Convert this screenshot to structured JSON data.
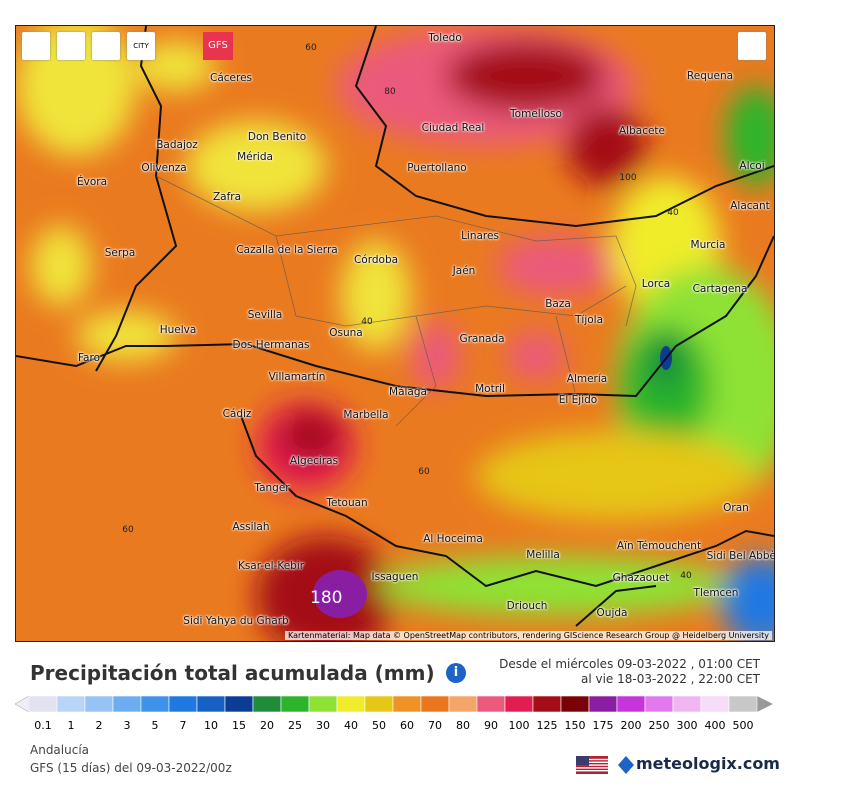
{
  "toolbar": {
    "city_button": "CITY",
    "model": "GFS"
  },
  "map": {
    "places": [
      "Toledo",
      "Cáceres",
      "Requena",
      "Don Benito",
      "Mérida",
      "Ciudad Real",
      "Tomelloso",
      "Albacete",
      "Badajoz",
      "Olivenza",
      "Évora",
      "Puertollano",
      "Zafra",
      "Alcoi",
      "Alacant",
      "Murcia",
      "Linares",
      "Cazalla de la Sierra",
      "Córdoba",
      "Serpa",
      "Jaén",
      "Lorca",
      "Cartagena",
      "Baza",
      "Sevilla",
      "Huelva",
      "Osuna",
      "Tíjola",
      "Granada",
      "Faro",
      "Dos Hermanas",
      "Villamartín",
      "Málaga",
      "Motril",
      "Almería",
      "El Ejido",
      "Cádiz",
      "Marbella",
      "Algeciras",
      "Tanger",
      "Tetouan",
      "Assilah",
      "Oran",
      "Al Hoceima",
      "Melilla",
      "Aïn Témouchent",
      "Sidi Bel Abbès",
      "Ksar-el-Kebir",
      "Issaguen",
      "Ghazaouet",
      "Tlemcen",
      "Driouch",
      "Oujda",
      "Sidi Yahya du Gharb"
    ],
    "contours": [
      60,
      80,
      100,
      40,
      40,
      60,
      60,
      40
    ],
    "peak": 180,
    "attribution": "Kartenmaterial: Map data © OpenStreetMap contributors, rendering GIScience Research Group @ Heidelberg University"
  },
  "legend": {
    "title": "Precipitación total acumulada (mm)",
    "period_from": "Desde el miércoles 09-03-2022 , 01:00 CET",
    "period_to": "al vie 18-03-2022 , 22:00 CET",
    "scale": [
      {
        "value": 0.1,
        "color": "#e2e2f2"
      },
      {
        "value": 1,
        "color": "#b8d4f6"
      },
      {
        "value": 2,
        "color": "#96c2f4"
      },
      {
        "value": 3,
        "color": "#6cadf2"
      },
      {
        "value": 5,
        "color": "#3f92ea"
      },
      {
        "value": 7,
        "color": "#2078e2"
      },
      {
        "value": 10,
        "color": "#1660c6"
      },
      {
        "value": 15,
        "color": "#0c3c94"
      },
      {
        "value": 20,
        "color": "#1e8c3a"
      },
      {
        "value": 25,
        "color": "#2cb52c"
      },
      {
        "value": 30,
        "color": "#8ee234"
      },
      {
        "value": 40,
        "color": "#f0ec2c"
      },
      {
        "value": 50,
        "color": "#e6c616"
      },
      {
        "value": 60,
        "color": "#ef9228"
      },
      {
        "value": 70,
        "color": "#ea761e"
      },
      {
        "value": 80,
        "color": "#f5a46a"
      },
      {
        "value": 90,
        "color": "#eb5a7c"
      },
      {
        "value": 100,
        "color": "#e21e50"
      },
      {
        "value": 125,
        "color": "#a40c18"
      },
      {
        "value": 150,
        "color": "#7a0206"
      },
      {
        "value": 175,
        "color": "#8a1ea2"
      },
      {
        "value": 200,
        "color": "#c634dc"
      },
      {
        "value": 250,
        "color": "#e27aee"
      },
      {
        "value": 300,
        "color": "#f0b6f0"
      },
      {
        "value": 400,
        "color": "#f6dcf6"
      },
      {
        "value": 500,
        "color": "#c8c8c8"
      }
    ],
    "region": "Andalucía",
    "model_run": "GFS (15 días) del 09-03-2022/00z",
    "brand": "meteologix.com"
  }
}
